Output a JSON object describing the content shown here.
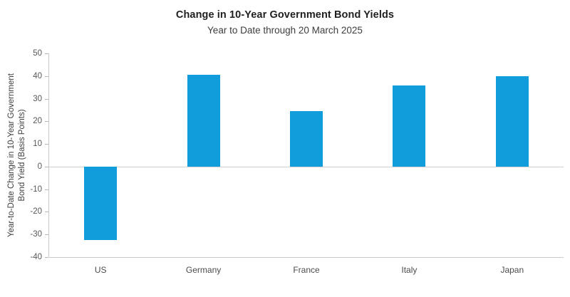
{
  "chart_data": {
    "type": "bar",
    "title": "Change in 10-Year Government Bond Yields",
    "subtitle": "Year to Date through 20 March 2025",
    "categories": [
      "US",
      "Germany",
      "France",
      "Italy",
      "Japan"
    ],
    "values": [
      -32.5,
      40.5,
      24.5,
      36,
      40
    ],
    "ylabel_line1": "Year-to-Date Change in 10-Year Government",
    "ylabel_line2": "Bond Yield (Basis Points)",
    "ylabel": "Year-to-Date Change in 10-Year Government Bond Yield (Basis Points)",
    "xlabel": "",
    "ylim": [
      -40,
      50
    ],
    "yticks": [
      50,
      40,
      30,
      20,
      10,
      0,
      -10,
      -20,
      -30,
      -40
    ],
    "legend": "none",
    "grid": "zero-baseline-only",
    "colors": {
      "bar": "#119CDB",
      "axis_line": "#c9c9c9",
      "tick_text": "#575757",
      "title_text": "#1f1f1f"
    }
  }
}
